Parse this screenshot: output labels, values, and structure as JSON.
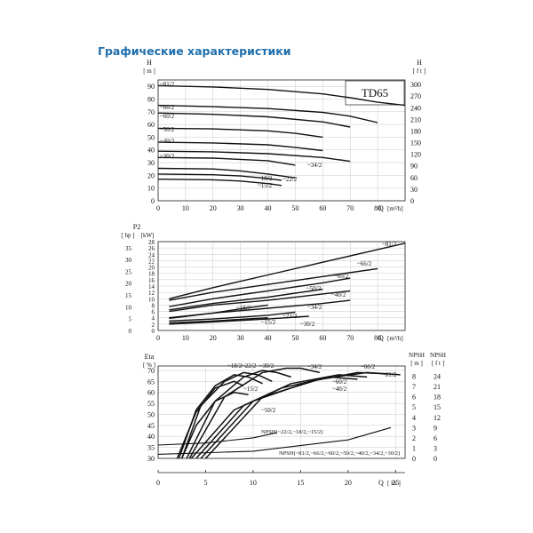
{
  "page": {
    "title": "Графические характеристики"
  },
  "chart_data": [
    {
      "type": "line",
      "model_label": "TD65",
      "xlabel": "Q",
      "xunit": "[m³/h]",
      "ylabel_left": "H",
      "yunit_left": "[ m ]",
      "ylabel_right": "H",
      "yunit_right": "[ f t ]",
      "xlim": [
        0,
        90
      ],
      "ylim": [
        0,
        95
      ],
      "x_ticks": [
        "0",
        "10",
        "20",
        "30",
        "40",
        "50",
        "60",
        "70",
        "80"
      ],
      "y_ticks_left": [
        "0",
        "10",
        "20",
        "30",
        "40",
        "50",
        "60",
        "70",
        "80",
        "90"
      ],
      "y_ticks_right": [
        "0",
        "30",
        "60",
        "90",
        "120",
        "150",
        "180",
        "210",
        "240",
        "270",
        "300"
      ],
      "series": [
        {
          "name": "81/2",
          "x": [
            0,
            20,
            40,
            60,
            70,
            80,
            90
          ],
          "y": [
            90.5,
            89.5,
            87.5,
            84,
            81,
            77.5,
            75
          ]
        },
        {
          "name": "66/2",
          "x": [
            0,
            20,
            40,
            60,
            70,
            80
          ],
          "y": [
            75,
            74,
            72.5,
            69.5,
            66.5,
            61.5
          ]
        },
        {
          "name": "60/2",
          "x": [
            0,
            20,
            40,
            60,
            70
          ],
          "y": [
            69,
            68,
            66,
            62,
            58
          ]
        },
        {
          "name": "50/2",
          "x": [
            0,
            20,
            40,
            50,
            60
          ],
          "y": [
            57,
            56.5,
            55,
            53,
            50
          ]
        },
        {
          "name": "40/2",
          "x": [
            0,
            20,
            40,
            50,
            60
          ],
          "y": [
            46,
            45.5,
            44,
            42,
            39.5
          ]
        },
        {
          "name": "34/2",
          "x": [
            0,
            20,
            40,
            60,
            70
          ],
          "y": [
            39,
            38.5,
            37,
            34,
            31
          ]
        },
        {
          "name": "30/2",
          "x": [
            0,
            20,
            40,
            50
          ],
          "y": [
            34,
            33.5,
            31.5,
            28
          ]
        },
        {
          "name": "22/2",
          "x": [
            0,
            20,
            30,
            40,
            50
          ],
          "y": [
            25.5,
            25,
            23.5,
            21,
            18
          ]
        },
        {
          "name": "18/2",
          "x": [
            0,
            20,
            30,
            40,
            45
          ],
          "y": [
            21,
            20.5,
            19.5,
            17.5,
            16
          ]
        },
        {
          "name": "15/2",
          "x": [
            0,
            20,
            30,
            40,
            45
          ],
          "y": [
            17,
            16.5,
            15.5,
            13.5,
            12
          ]
        }
      ]
    },
    {
      "type": "line",
      "xlabel": "Q",
      "xunit": "[m³/h]",
      "ylabel": "P2",
      "yunit_hp": "[ hp ]",
      "yunit_kw": "[kW]",
      "xlim": [
        0,
        90
      ],
      "ylim": [
        0,
        28
      ],
      "x_ticks": [
        "0",
        "10",
        "20",
        "30",
        "40",
        "50",
        "60",
        "70",
        "80"
      ],
      "kw_ticks": [
        "0",
        "2",
        "4",
        "6",
        "8",
        "10",
        "12",
        "14",
        "16",
        "18",
        "20",
        "22",
        "24",
        "26",
        "28"
      ],
      "hp_ticks": [
        "0",
        "5",
        "10",
        "15",
        "20",
        "25",
        "30",
        "35"
      ],
      "series": [
        {
          "name": "81/2",
          "x": [
            4,
            20,
            40,
            60,
            80,
            90
          ],
          "y": [
            10,
            13.5,
            17.5,
            21.5,
            25.5,
            27.5
          ]
        },
        {
          "name": "66/2",
          "x": [
            4,
            20,
            40,
            60,
            80
          ],
          "y": [
            9.5,
            12,
            14.5,
            17,
            19.5
          ]
        },
        {
          "name": "60/2",
          "x": [
            4,
            20,
            40,
            60,
            70
          ],
          "y": [
            7.5,
            10,
            12.5,
            15,
            16.5
          ]
        },
        {
          "name": "50/2",
          "x": [
            4,
            20,
            40,
            60
          ],
          "y": [
            6.5,
            8.5,
            10.5,
            13
          ]
        },
        {
          "name": "40/2",
          "x": [
            4,
            20,
            40,
            60,
            70
          ],
          "y": [
            6,
            8,
            9.5,
            11.5,
            12.5
          ]
        },
        {
          "name": "34/2",
          "x": [
            4,
            20,
            40,
            60,
            70
          ],
          "y": [
            4,
            5.5,
            7,
            8.5,
            9.5
          ]
        },
        {
          "name": "18/2",
          "x": [
            4,
            20,
            30,
            40
          ],
          "y": [
            3.8,
            5.5,
            6.8,
            8
          ]
        },
        {
          "name": "22/2",
          "x": [
            4,
            20,
            40,
            50
          ],
          "y": [
            3,
            3.6,
            4.8,
            5.8
          ]
        },
        {
          "name": "15/2",
          "x": [
            4,
            20,
            30,
            40
          ],
          "y": [
            2.4,
            3,
            3.5,
            4
          ]
        },
        {
          "name": "30/2",
          "x": [
            4,
            20,
            40,
            50,
            55
          ],
          "y": [
            2,
            2.7,
            3.6,
            4.2,
            4.5
          ]
        }
      ]
    },
    {
      "type": "line",
      "xlabel": "Q",
      "xunit": "[ l/s ]",
      "ylabel": "Eta",
      "yunit": "[ % ]",
      "ylabel_right": "NPSH",
      "yunit_right_m": "[ m ]",
      "yunit_right_ft": "[ f t ]",
      "xlim": [
        0,
        26
      ],
      "ylim": [
        30,
        72
      ],
      "x_ticks": [
        "0",
        "5",
        "10",
        "15",
        "20",
        "25"
      ],
      "y_ticks": [
        "30",
        "35",
        "40",
        "45",
        "50",
        "55",
        "60",
        "65",
        "70"
      ],
      "npsh_m_ticks": [
        "0",
        "1",
        "2",
        "3",
        "4",
        "5",
        "6",
        "7",
        "8"
      ],
      "npsh_ft_ticks": [
        "0",
        "3",
        "6",
        "9",
        "12",
        "15",
        "18",
        "21",
        "24"
      ],
      "npsh_labels": [
        "NPSH(~22/2,~18/2,~15/2)",
        "NPSH(~81/2,~66/2,~60/2,~50/2,~40/2,~34/2,~30/2)"
      ],
      "npsh_series": [
        {
          "x": [
            0,
            5,
            10,
            12.5
          ],
          "y_m": [
            1.3,
            1.5,
            2.0,
            2.5
          ]
        },
        {
          "x": [
            0,
            10,
            20,
            24.5
          ],
          "y_m": [
            0.4,
            0.7,
            1.8,
            3.0
          ]
        }
      ],
      "series": [
        {
          "name": "18/2",
          "x": [
            2.2,
            4,
            6,
            8,
            9.5,
            11
          ],
          "y": [
            30,
            52,
            63,
            68,
            67,
            64
          ]
        },
        {
          "name": "22/2",
          "x": [
            2.5,
            4.5,
            7,
            9,
            10.5,
            12
          ],
          "y": [
            30,
            54,
            65,
            69,
            68,
            65
          ]
        },
        {
          "name": "15/2",
          "x": [
            2,
            4,
            6,
            8,
            9
          ],
          "y": [
            30,
            51,
            62,
            65,
            63
          ]
        },
        {
          "name": "30/2",
          "x": [
            3,
            6,
            9,
            11,
            12.5,
            14
          ],
          "y": [
            30,
            56,
            67,
            70,
            69,
            67
          ]
        },
        {
          "name": "34/2",
          "x": [
            3.3,
            7,
            11,
            13.5,
            15,
            17
          ],
          "y": [
            30,
            58,
            69,
            71,
            71,
            69
          ]
        },
        {
          "name": "50/2",
          "x": [
            2.5,
            4,
            6,
            8,
            9.5
          ],
          "y": [
            30,
            45,
            56,
            60,
            59
          ]
        },
        {
          "name": "40/2",
          "x": [
            3.5,
            8,
            13,
            18,
            21
          ],
          "y": [
            30,
            52,
            62,
            67,
            66
          ]
        },
        {
          "name": "60/2",
          "x": [
            4,
            9,
            14,
            19,
            22
          ],
          "y": [
            30,
            54,
            64,
            68,
            67
          ]
        },
        {
          "name": "66/2",
          "x": [
            4.5,
            10,
            16,
            21,
            24
          ],
          "y": [
            30,
            56,
            65,
            69,
            68.5
          ]
        },
        {
          "name": "81/2",
          "x": [
            5,
            11,
            17,
            22,
            25.5
          ],
          "y": [
            30,
            58,
            66,
            69,
            68
          ]
        }
      ]
    }
  ]
}
